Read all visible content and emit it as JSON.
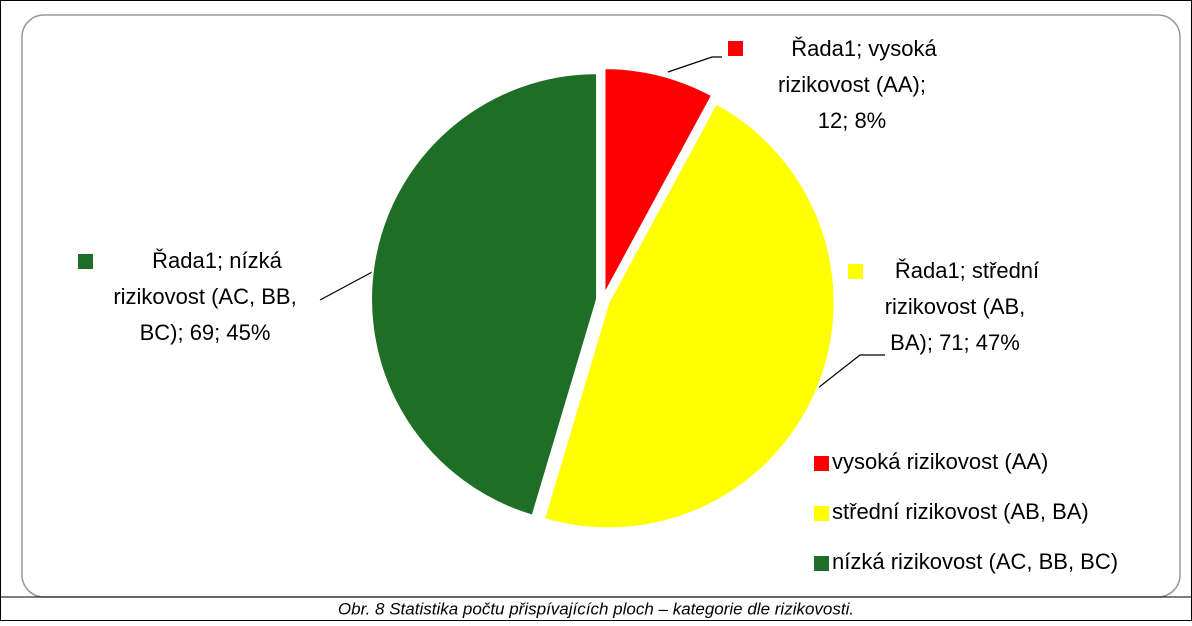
{
  "chart_data": {
    "type": "pie",
    "categories": [
      "vysoká rizikovost (AA)",
      "střední rizikovost (AB, BA)",
      "nízká rizikovost (AC, BB, BC)"
    ],
    "values": [
      12,
      71,
      69
    ],
    "colors": [
      "#ff0000",
      "#ffff00",
      "#1e6e28"
    ],
    "data_labels": [
      [
        "Řada1; vysoká",
        "rizikovost (AA);",
        "12; 8%"
      ],
      [
        "Řada1; střední",
        "rizikovost (AB,",
        "BA); 71; 47%"
      ],
      [
        "Řada1; nízká",
        "rizikovost (AC, BB,",
        "BC); 69; 45%"
      ]
    ],
    "legend": "bottom-right",
    "caption": "Obr. 8 Statistika počtu přispívajících ploch – kategorie dle rizikovosti."
  }
}
